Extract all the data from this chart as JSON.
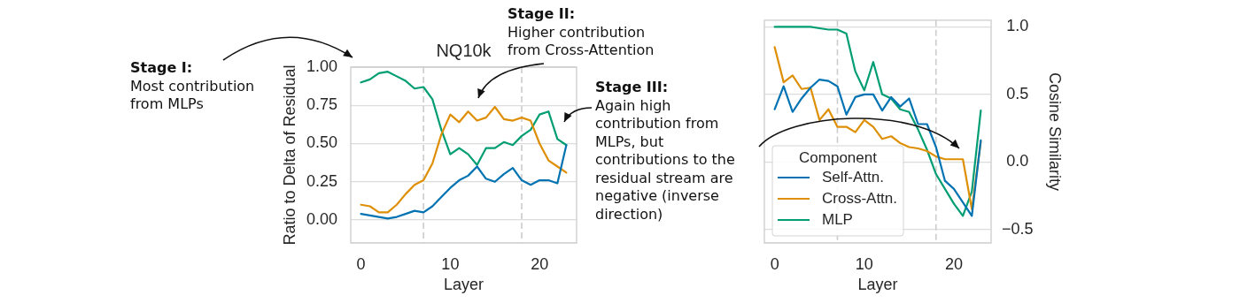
{
  "chart_data": [
    {
      "type": "line",
      "title": "NQ10k",
      "xlabel": "Layer",
      "ylabel": "Ratio to Delta of Residual",
      "x": [
        0,
        1,
        2,
        3,
        4,
        5,
        6,
        7,
        8,
        9,
        10,
        11,
        12,
        13,
        14,
        15,
        16,
        17,
        18,
        19,
        20,
        21,
        22,
        23
      ],
      "series": [
        {
          "color": "#0173b2",
          "values": [
            0.04,
            0.03,
            0.02,
            0.01,
            0.02,
            0.04,
            0.06,
            0.05,
            0.09,
            0.15,
            0.21,
            0.26,
            0.29,
            0.35,
            0.27,
            0.25,
            0.3,
            0.34,
            0.26,
            0.23,
            0.26,
            0.26,
            0.24,
            0.49
          ]
        },
        {
          "color": "#de8f05",
          "values": [
            0.1,
            0.09,
            0.05,
            0.05,
            0.1,
            0.17,
            0.23,
            0.26,
            0.37,
            0.56,
            0.69,
            0.64,
            0.71,
            0.65,
            0.67,
            0.74,
            0.66,
            0.65,
            0.67,
            0.65,
            0.5,
            0.39,
            0.35,
            0.31
          ]
        },
        {
          "color": "#029e73",
          "values": [
            0.9,
            0.92,
            0.96,
            0.97,
            0.94,
            0.91,
            0.86,
            0.87,
            0.79,
            0.59,
            0.43,
            0.47,
            0.43,
            0.36,
            0.47,
            0.47,
            0.51,
            0.49,
            0.55,
            0.59,
            0.69,
            0.71,
            0.53,
            0.49
          ]
        }
      ],
      "xlim": [
        -1.15,
        24.15
      ],
      "xticks": [
        0,
        10,
        20
      ],
      "ylim": [
        -0.15,
        1.0
      ],
      "yticks": [
        {
          "value": 0,
          "label": "0.00"
        },
        {
          "value": 0.25,
          "label": "0.25"
        },
        {
          "value": 0.5,
          "label": "0.50"
        },
        {
          "value": 0.75,
          "label": "0.75"
        },
        {
          "value": 1,
          "label": "1.00"
        }
      ],
      "grid": "y",
      "ref_lines": [
        {
          "axis": "x",
          "value": 7,
          "color": "#cccccc",
          "line_style": "dashed"
        },
        {
          "axis": "x",
          "value": 18,
          "color": "#cccccc",
          "line_style": "dashed"
        }
      ],
      "annotations": [
        "Stage I:",
        "Most contribution from MLPs",
        "Stage II:",
        "Higher contribution from Cross-Attention",
        "Stage III:",
        "Again high contribution from MLPs, but contributions to the residual stream are negative (inverse direction)"
      ]
    },
    {
      "type": "line",
      "xlabel": "Layer",
      "y2label": "Cosine Similarity",
      "x": [
        0,
        1,
        2,
        3,
        4,
        5,
        6,
        7,
        8,
        9,
        10,
        11,
        12,
        13,
        14,
        15,
        16,
        17,
        18,
        19,
        20,
        21,
        22,
        23
      ],
      "series": [
        {
          "name": "Self-Attn.",
          "color": "#0173b2",
          "axis": "y2",
          "values": [
            0.39,
            0.56,
            0.37,
            0.47,
            0.55,
            0.61,
            0.6,
            0.56,
            0.35,
            0.48,
            0.5,
            0.5,
            0.38,
            0.48,
            0.41,
            0.47,
            0.28,
            0.28,
            0.11,
            -0.14,
            -0.2,
            -0.3,
            -0.4,
            0.16
          ]
        },
        {
          "name": "Cross-Attn.",
          "color": "#de8f05",
          "axis": "y2",
          "values": [
            0.85,
            0.59,
            0.64,
            0.54,
            0.55,
            0.31,
            0.39,
            0.26,
            0.26,
            0.22,
            0.31,
            0.26,
            0.17,
            0.19,
            0.14,
            0.11,
            0.1,
            0.08,
            0.04,
            0.02,
            0.02,
            0.02,
            -0.35,
            0.15
          ]
        },
        {
          "name": "MLP",
          "color": "#029e73",
          "axis": "y2",
          "values": [
            1.0,
            1.0,
            1.0,
            1.0,
            1.0,
            0.99,
            0.98,
            0.98,
            0.95,
            0.67,
            0.53,
            0.74,
            0.5,
            0.47,
            0.39,
            0.37,
            0.24,
            0.09,
            -0.09,
            -0.2,
            -0.31,
            -0.4,
            -0.22,
            0.38
          ]
        }
      ],
      "xlim": [
        -1.15,
        24.15
      ],
      "xticks": [
        0,
        10,
        20
      ],
      "y2lim": [
        -0.6,
        1.05
      ],
      "y2ticks": [
        {
          "value": -0.5,
          "label": "−0.5"
        },
        {
          "value": 0,
          "label": "0.0"
        },
        {
          "value": 0.5,
          "label": "0.5"
        },
        {
          "value": 1,
          "label": "1.0"
        }
      ],
      "grid": "y",
      "legend": "bottom left",
      "legend_title": "Component",
      "ref_lines": [
        {
          "axis": "x",
          "value": 7,
          "color": "#cccccc",
          "line_style": "dashed"
        },
        {
          "axis": "x",
          "value": 18,
          "color": "#cccccc",
          "line_style": "dashed"
        }
      ]
    }
  ]
}
